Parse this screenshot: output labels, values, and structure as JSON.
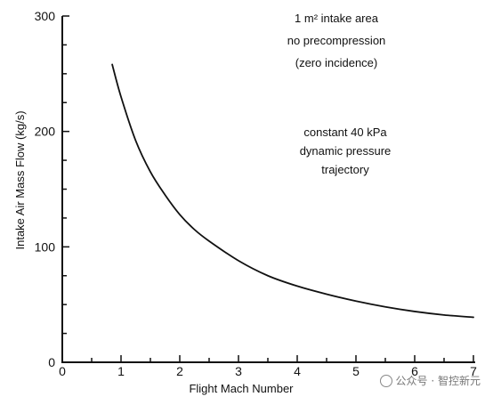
{
  "chart_data": {
    "type": "line",
    "title": "",
    "xlabel": "Flight Mach Number",
    "ylabel": "Intake Air Mass Flow (kg/s)",
    "xlim": [
      0,
      7
    ],
    "ylim": [
      0,
      300
    ],
    "xticks": [
      0,
      1,
      2,
      3,
      4,
      5,
      6,
      7
    ],
    "yticks": [
      0,
      100,
      200,
      300
    ],
    "grid": false,
    "series": [
      {
        "x": [
          0.85,
          1.0,
          1.25,
          1.5,
          1.75,
          2.0,
          2.25,
          2.5,
          3.0,
          3.5,
          4.0,
          4.5,
          5.0,
          5.5,
          6.0,
          6.5,
          7.0
        ],
        "y": [
          258,
          230,
          192,
          165,
          145,
          128,
          115,
          105,
          88,
          75,
          66,
          59,
          53,
          48,
          44,
          41,
          39
        ]
      }
    ],
    "annotations": [
      {
        "lines": [
          "1 m² intake area",
          "no precompression",
          "(zero incidence)"
        ]
      },
      {
        "lines": [
          "constant 40 kPa",
          "dynamic pressure",
          "trajectory"
        ]
      }
    ],
    "line_color": "#111111"
  },
  "watermark": {
    "text": "公众号 · 智控新元",
    "icon": "wechat-icon"
  }
}
